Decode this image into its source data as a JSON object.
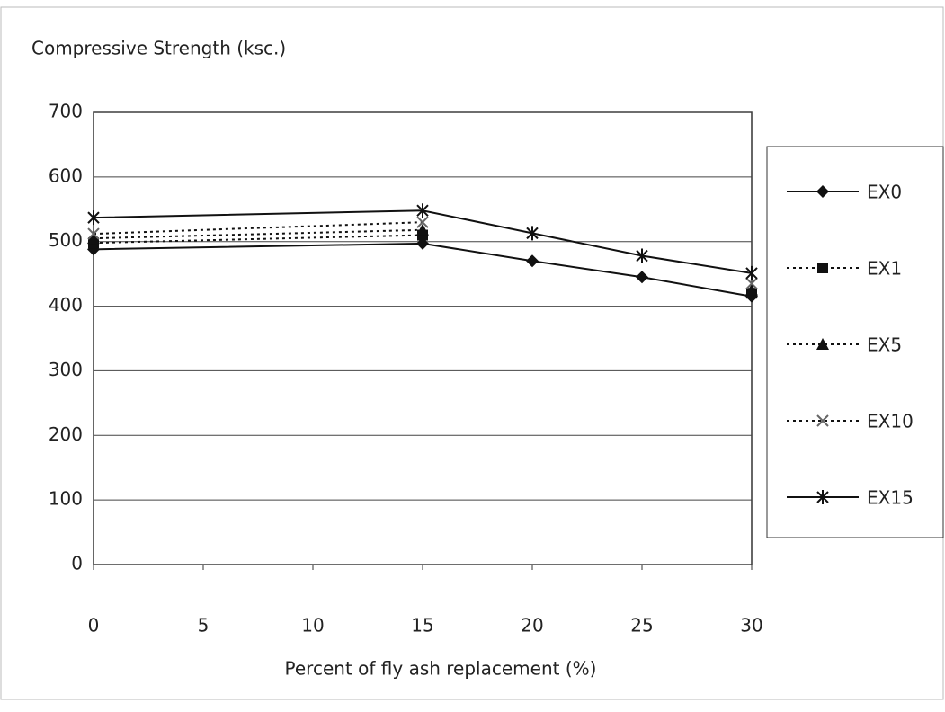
{
  "chart_data": {
    "type": "line",
    "y_label": "Compressive Strength (ksc.)",
    "x_label": "Percent of fly ash replacement (%)",
    "x": [
      0,
      15,
      20,
      25,
      30
    ],
    "series": [
      {
        "name": "EX0",
        "color": "#111111",
        "marker": "diamond",
        "line_style": "solid",
        "values": [
          488,
          497,
          470,
          445,
          415
        ]
      },
      {
        "name": "EX1",
        "color": "#111111",
        "marker": "square",
        "line_style": "dotted",
        "values": [
          498,
          510,
          null,
          null,
          420
        ]
      },
      {
        "name": "EX5",
        "color": "#111111",
        "marker": "triangle",
        "line_style": "dotted",
        "values": [
          505,
          518,
          null,
          null,
          425
        ]
      },
      {
        "name": "EX10",
        "color": "#111111",
        "marker": "x",
        "line_style": "dotted",
        "values": [
          512,
          530,
          null,
          null,
          435
        ]
      },
      {
        "name": "EX15",
        "color": "#111111",
        "marker": "star",
        "line_style": "solid",
        "values": [
          537,
          548,
          513,
          478,
          451
        ]
      }
    ],
    "xlim": [
      0,
      30
    ],
    "xticks": [
      0,
      5,
      10,
      15,
      20,
      25,
      30
    ],
    "ylim": [
      0,
      700
    ],
    "yticks": [
      0,
      100,
      200,
      300,
      400,
      500,
      600,
      700
    ],
    "grid": true,
    "legend": "right"
  }
}
